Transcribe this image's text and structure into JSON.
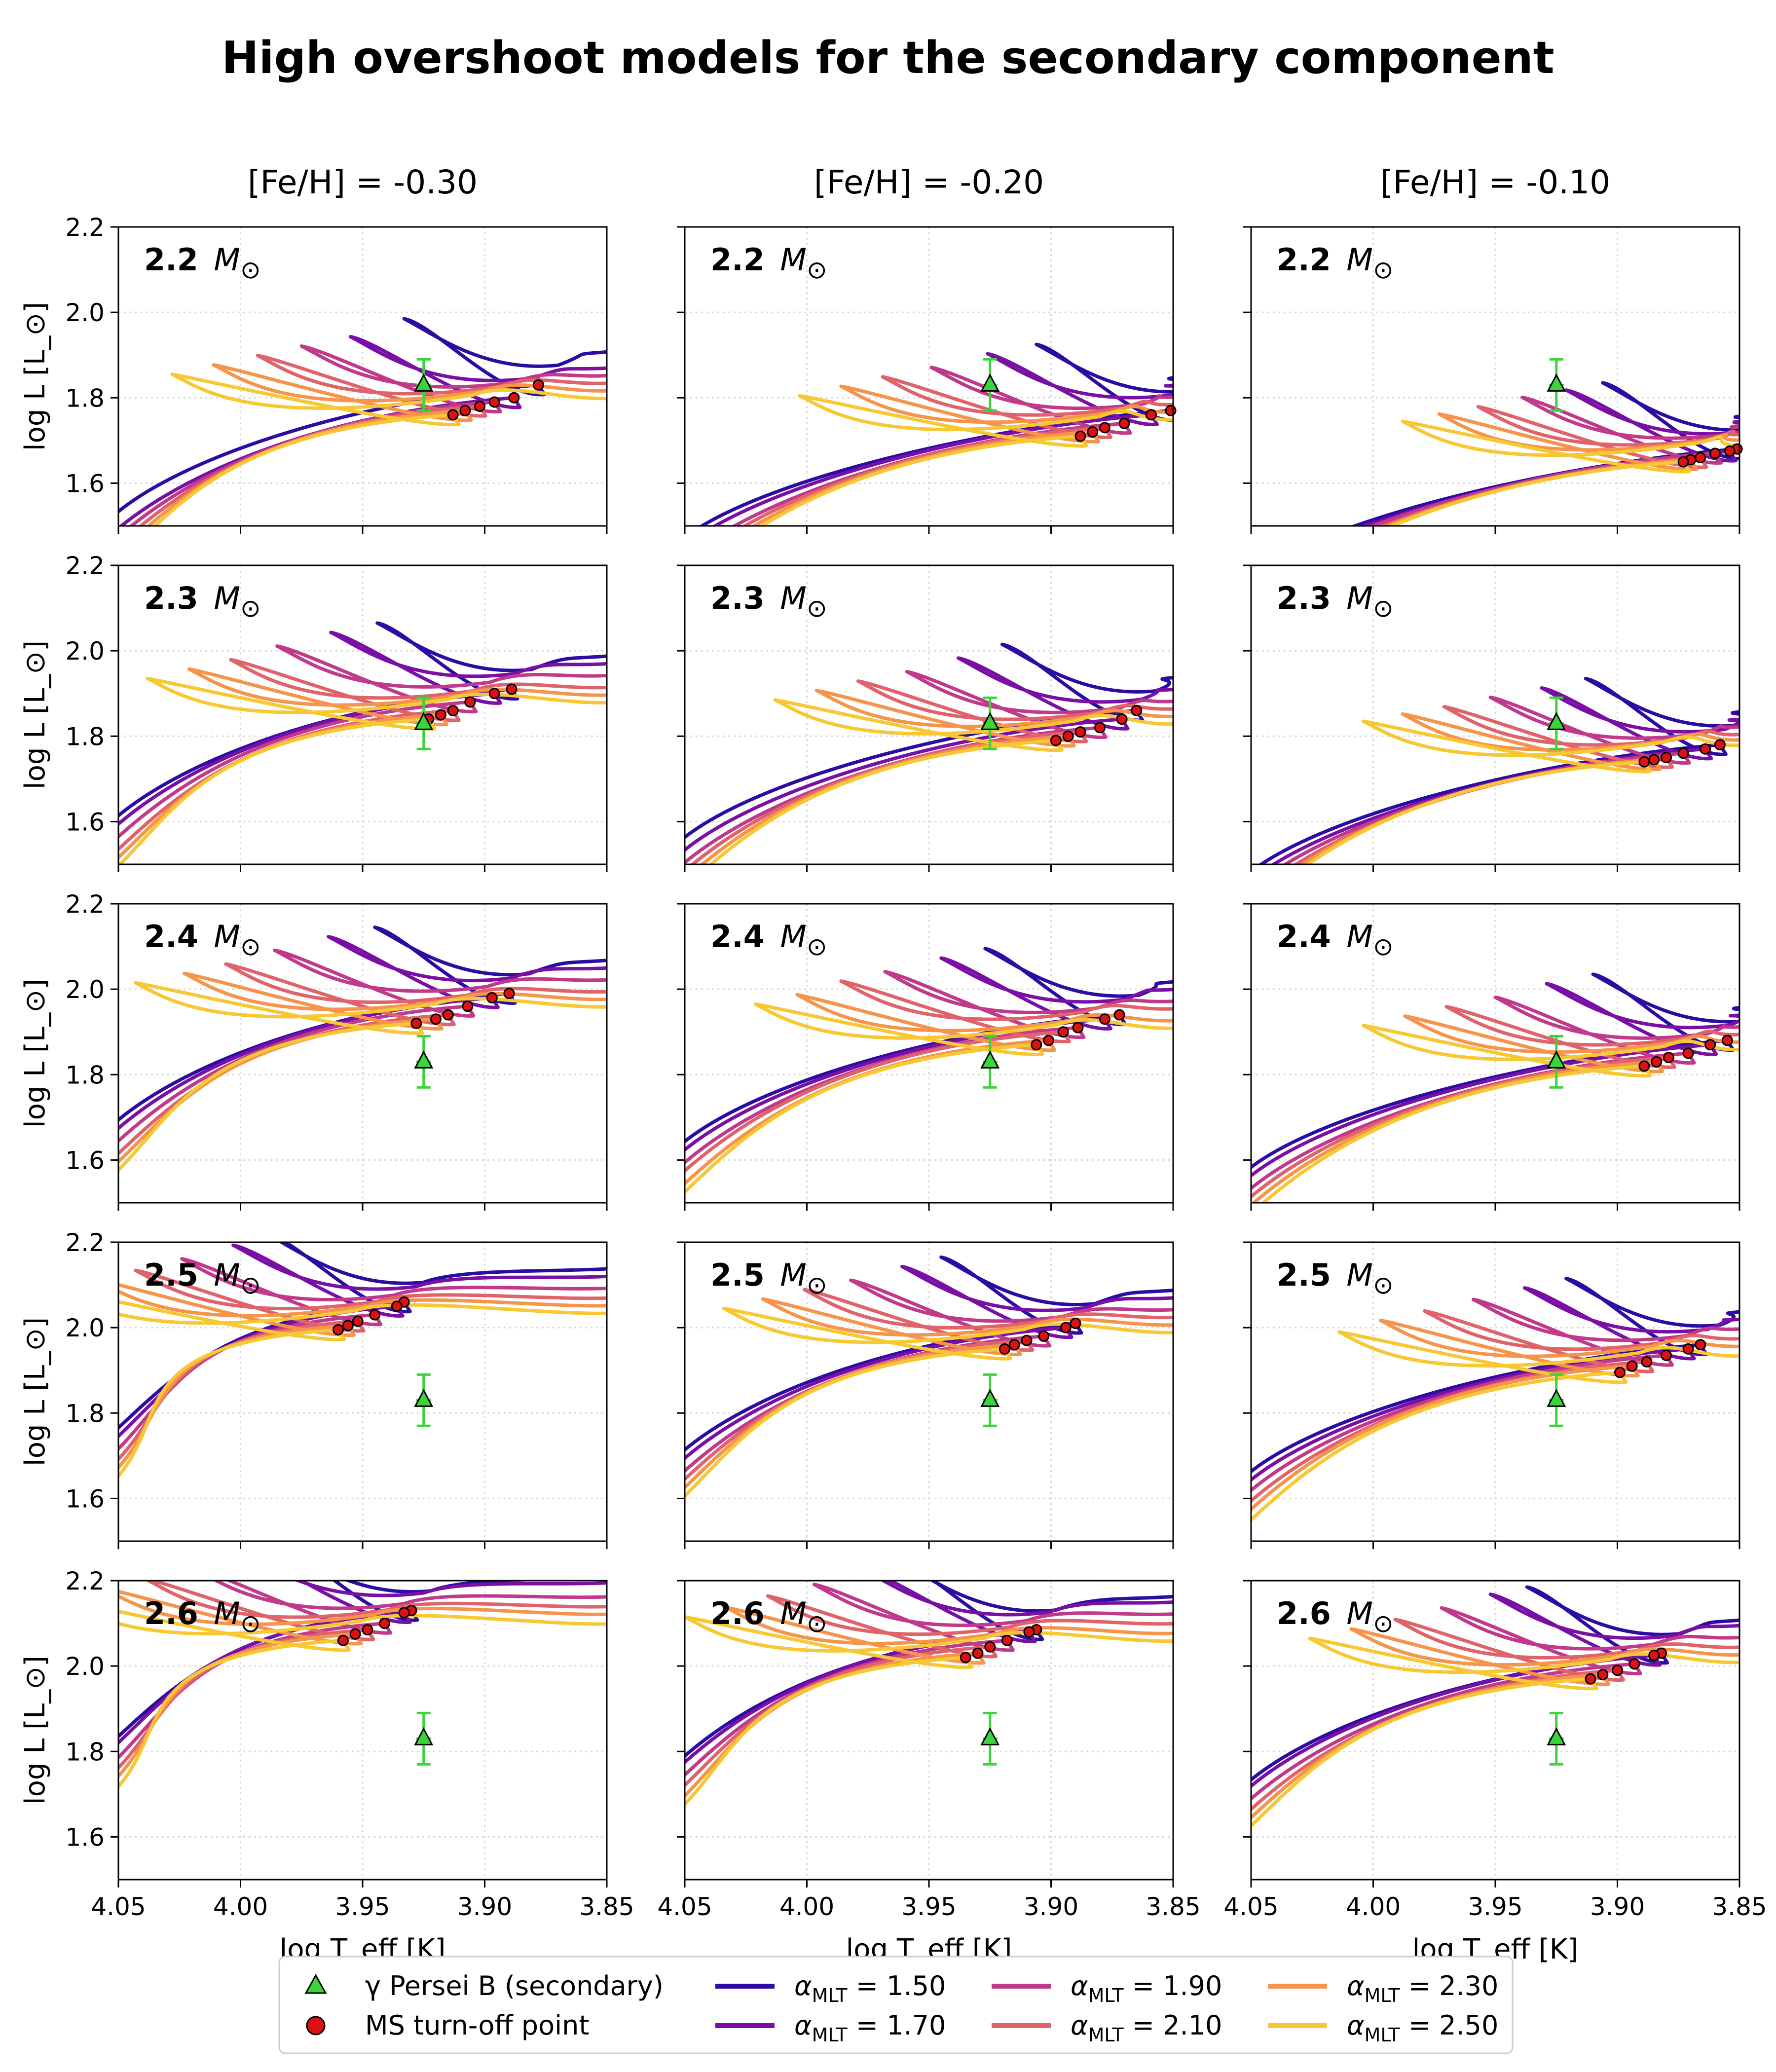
{
  "figure": {
    "title": "High overshoot models for the secondary component",
    "column_titles": [
      "[Fe/H] = -0.30",
      "[Fe/H] = -0.20",
      "[Fe/H] = -0.10"
    ],
    "mass_unit": "M",
    "mass_unit_symbol": "⊙"
  },
  "colors": {
    "alpha_150": "#2c0ca3",
    "alpha_170": "#7a0fa6",
    "alpha_190": "#c1398a",
    "alpha_210": "#e0636b",
    "alpha_230": "#f5944a",
    "alpha_250": "#f7c833",
    "observation": "#3bd43b",
    "turnoff": "#dd1111"
  },
  "legend": {
    "observation": "γ Persei B (secondary)",
    "turnoff": "MS turn-off point",
    "alpha_prefix": "α",
    "alpha_subscript": "MLT",
    "alpha_values": [
      "1.50",
      "1.70",
      "1.90",
      "2.10",
      "2.30",
      "2.50"
    ]
  },
  "chart_data": {
    "type": "line",
    "title": "High overshoot models for the secondary component",
    "xlabel": "log T_eff [K]",
    "ylabel": "log L [L_⊙]",
    "xlim": [
      4.05,
      3.85
    ],
    "ylim": [
      1.5,
      2.2
    ],
    "xticks": [
      "4.05",
      "4.00",
      "3.95",
      "3.90",
      "3.85"
    ],
    "yticks": [
      "1.6",
      "1.8",
      "2.0",
      "2.2"
    ],
    "grid": true,
    "alpha_values": [
      1.5,
      1.7,
      1.9,
      2.1,
      2.3,
      2.5
    ],
    "metallicities": [
      -0.3,
      -0.2,
      -0.1
    ],
    "masses": [
      "2.2",
      "2.3",
      "2.4",
      "2.5",
      "2.6"
    ],
    "observation": {
      "label": "γ Persei B (secondary)",
      "logTeff": 3.925,
      "logL": 1.83,
      "logL_err": 0.06,
      "logTeff_err": 0.003
    },
    "ms_turnoff_points": {
      "-0.30": [
        [
          [
            3.878,
            1.83
          ],
          [
            3.888,
            1.8
          ],
          [
            3.896,
            1.79
          ],
          [
            3.902,
            1.78
          ],
          [
            3.908,
            1.77
          ],
          [
            3.913,
            1.76
          ]
        ],
        [
          [
            3.889,
            1.91
          ],
          [
            3.896,
            1.9
          ],
          [
            3.906,
            1.88
          ],
          [
            3.913,
            1.86
          ],
          [
            3.918,
            1.85
          ],
          [
            3.923,
            1.84
          ]
        ],
        [
          [
            3.89,
            1.99
          ],
          [
            3.897,
            1.98
          ],
          [
            3.907,
            1.96
          ],
          [
            3.915,
            1.94
          ],
          [
            3.92,
            1.93
          ],
          [
            3.928,
            1.92
          ]
        ],
        [
          [
            3.933,
            2.06
          ],
          [
            3.936,
            2.05
          ],
          [
            3.945,
            2.03
          ],
          [
            3.952,
            2.015
          ],
          [
            3.956,
            2.005
          ],
          [
            3.96,
            1.995
          ]
        ],
        [
          [
            3.93,
            2.13
          ],
          [
            3.933,
            2.125
          ],
          [
            3.941,
            2.1
          ],
          [
            3.948,
            2.085
          ],
          [
            3.953,
            2.075
          ],
          [
            3.958,
            2.06
          ]
        ]
      ],
      "-0.20": [
        [
          [
            3.851,
            1.77
          ],
          [
            3.859,
            1.76
          ],
          [
            3.87,
            1.74
          ],
          [
            3.878,
            1.73
          ],
          [
            3.883,
            1.72
          ],
          [
            3.888,
            1.71
          ]
        ],
        [
          [
            3.865,
            1.86
          ],
          [
            3.871,
            1.84
          ],
          [
            3.88,
            1.82
          ],
          [
            3.888,
            1.81
          ],
          [
            3.893,
            1.8
          ],
          [
            3.898,
            1.79
          ]
        ],
        [
          [
            3.872,
            1.94
          ],
          [
            3.878,
            1.93
          ],
          [
            3.889,
            1.91
          ],
          [
            3.895,
            1.9
          ],
          [
            3.901,
            1.88
          ],
          [
            3.906,
            1.87
          ]
        ],
        [
          [
            3.89,
            2.01
          ],
          [
            3.894,
            2.0
          ],
          [
            3.903,
            1.98
          ],
          [
            3.91,
            1.97
          ],
          [
            3.915,
            1.96
          ],
          [
            3.919,
            1.95
          ]
        ],
        [
          [
            3.906,
            2.085
          ],
          [
            3.909,
            2.08
          ],
          [
            3.918,
            2.06
          ],
          [
            3.925,
            2.045
          ],
          [
            3.93,
            2.03
          ],
          [
            3.935,
            2.02
          ]
        ]
      ],
      "-0.10": [
        [
          [
            3.851,
            1.68
          ],
          [
            3.854,
            1.675
          ],
          [
            3.86,
            1.67
          ],
          [
            3.866,
            1.66
          ],
          [
            3.87,
            1.655
          ],
          [
            3.873,
            1.65
          ]
        ],
        [
          [
            3.858,
            1.78
          ],
          [
            3.864,
            1.77
          ],
          [
            3.873,
            1.76
          ],
          [
            3.88,
            1.75
          ],
          [
            3.885,
            1.745
          ],
          [
            3.889,
            1.74
          ]
        ],
        [
          [
            3.855,
            1.88
          ],
          [
            3.862,
            1.87
          ],
          [
            3.871,
            1.85
          ],
          [
            3.879,
            1.84
          ],
          [
            3.884,
            1.83
          ],
          [
            3.889,
            1.82
          ]
        ],
        [
          [
            3.866,
            1.96
          ],
          [
            3.871,
            1.95
          ],
          [
            3.88,
            1.935
          ],
          [
            3.888,
            1.92
          ],
          [
            3.894,
            1.91
          ],
          [
            3.899,
            1.895
          ]
        ],
        [
          [
            3.882,
            2.03
          ],
          [
            3.885,
            2.025
          ],
          [
            3.893,
            2.005
          ],
          [
            3.9,
            1.99
          ],
          [
            3.906,
            1.98
          ],
          [
            3.911,
            1.97
          ]
        ]
      ]
    },
    "track_model_note": "Each panel shows six evolutionary tracks (one per alpha_MLT), colors from dark purple (1.50) to yellow (2.50); each track rises along the main sequence to the MS turn-off point, dips, then sweeps left-upward in a hook to a tip near logTeff 3.95-4.02"
  }
}
